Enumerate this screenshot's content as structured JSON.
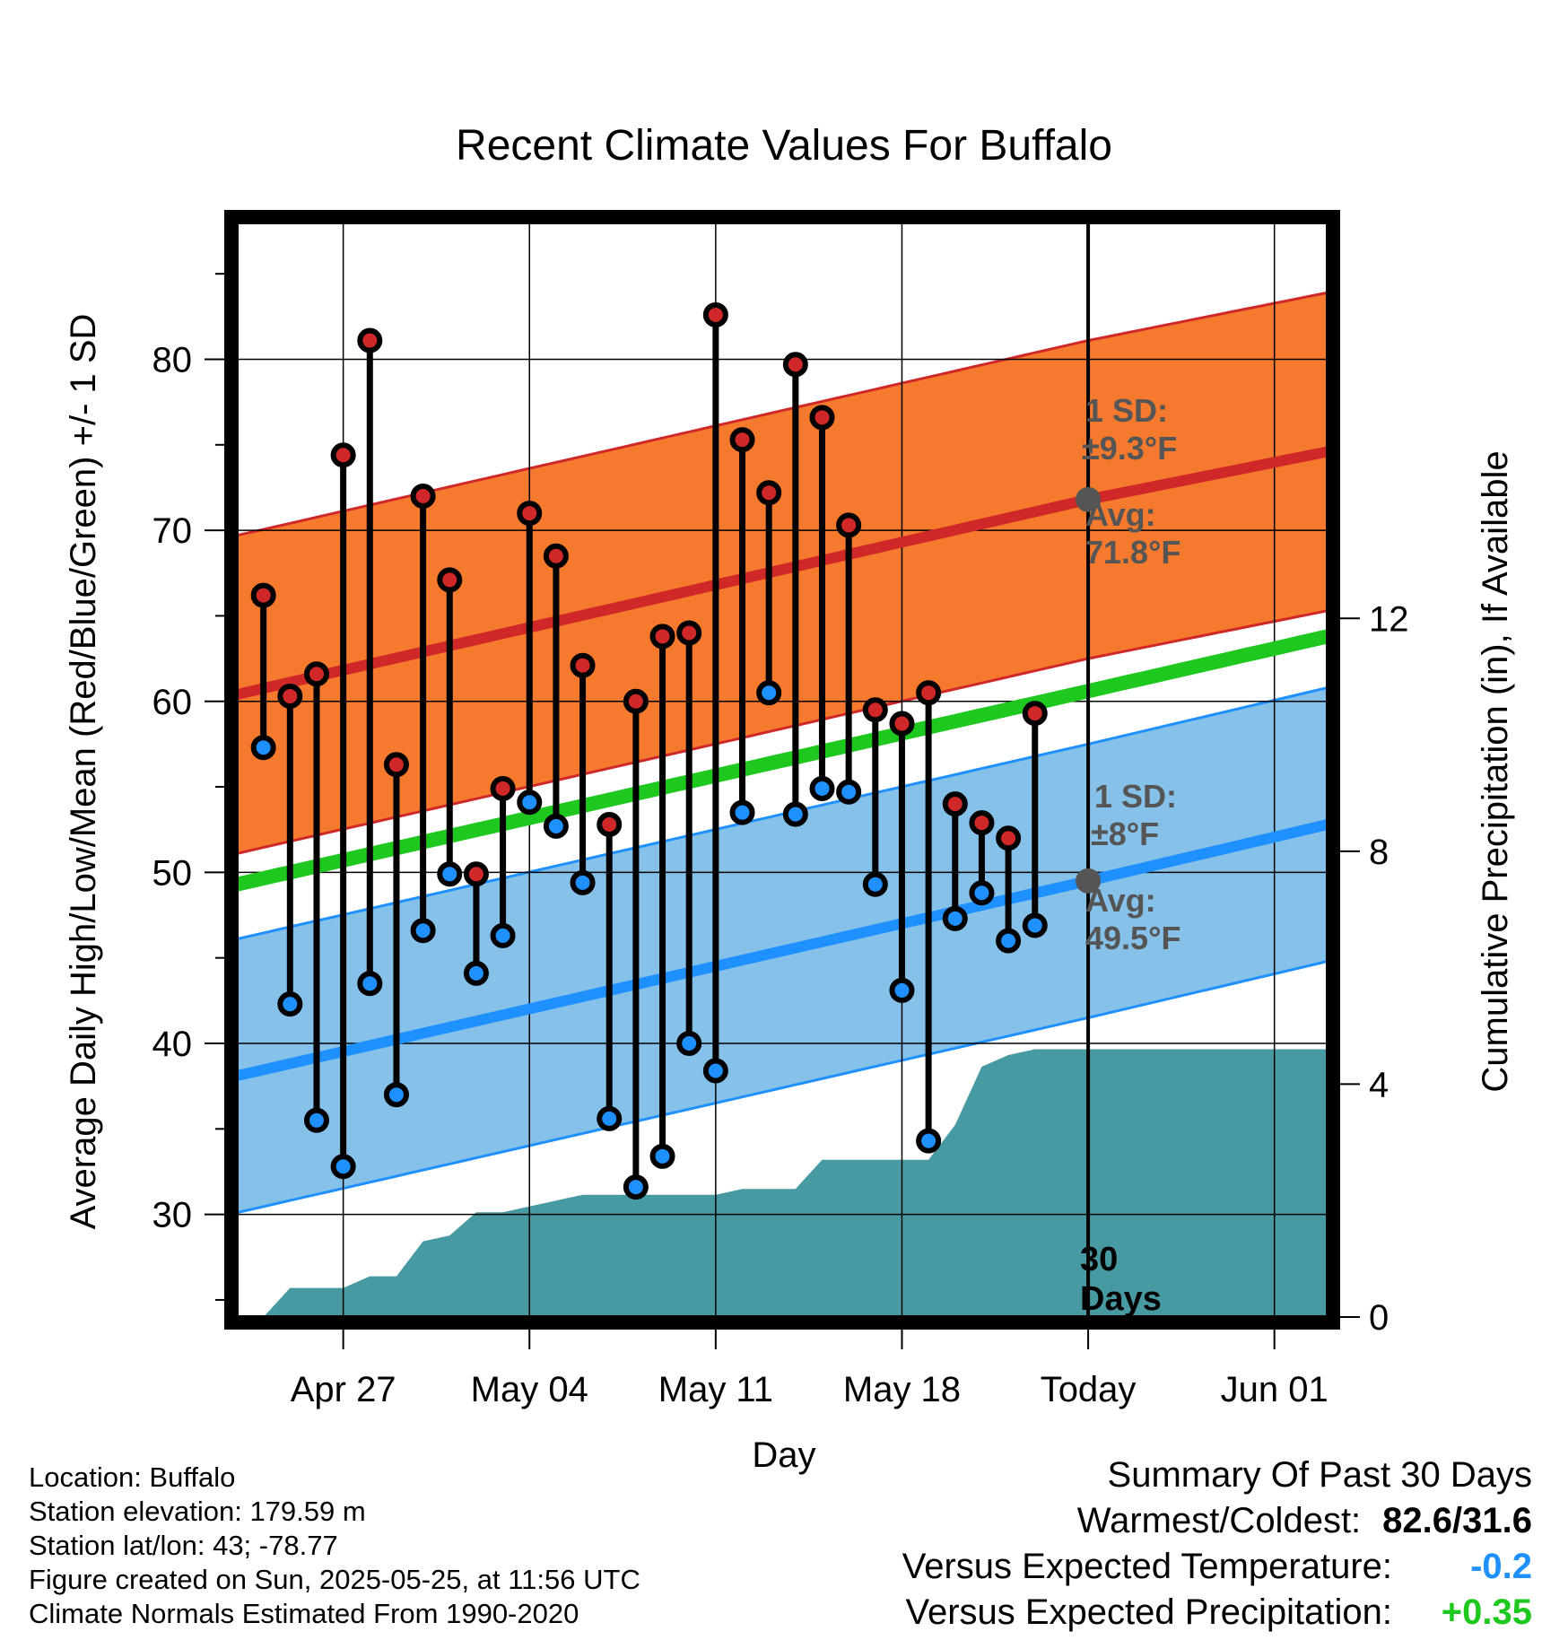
{
  "chart_data": {
    "type": "line",
    "title": "Recent Climate Values For Buffalo",
    "xlabel": "Day",
    "ylabel": "Average Daily High/Low/Mean (Red/Blue/Green) +/- 1 SD",
    "y2label": "Cumulative Precipitation (in), If Available",
    "x_ticks": [
      "Apr 27",
      "May 04",
      "May 11",
      "May 18",
      "Today",
      "Jun 01"
    ],
    "x_range": [
      "2025-04-23",
      "2025-06-03"
    ],
    "ylim": [
      24,
      88
    ],
    "yticks": [
      30,
      40,
      50,
      60,
      70,
      80
    ],
    "y2lim": [
      0,
      18.8
    ],
    "y2ticks": [
      0,
      4,
      8,
      12
    ],
    "today": "2025-05-25",
    "normals": {
      "dates": [
        "2025-04-23",
        "2025-05-25",
        "2025-06-03"
      ],
      "avg_high": [
        60.4,
        71.8,
        74.6
      ],
      "high_sd": 9.3,
      "avg_low": [
        38.1,
        49.5,
        52.8
      ],
      "low_sd": 8,
      "avg_mean": [
        49.3,
        60.6,
        63.8
      ]
    },
    "annotations": {
      "high_sd_label": "1 SD:",
      "high_sd_value": "±9.3°F",
      "high_avg_label": "Avg:",
      "high_avg_value": "71.8°F",
      "low_sd_label": "1 SD:",
      "low_sd_value": "±8°F",
      "low_avg_label": "Avg:",
      "low_avg_value": "49.5°F",
      "period_number": "30",
      "period_unit": "Days"
    },
    "series": [
      {
        "name": "Daily High",
        "dates": [
          "2025-04-24",
          "2025-04-25",
          "2025-04-26",
          "2025-04-27",
          "2025-04-28",
          "2025-04-29",
          "2025-04-30",
          "2025-05-01",
          "2025-05-02",
          "2025-05-03",
          "2025-05-04",
          "2025-05-05",
          "2025-05-06",
          "2025-05-07",
          "2025-05-08",
          "2025-05-09",
          "2025-05-10",
          "2025-05-11",
          "2025-05-12",
          "2025-05-13",
          "2025-05-14",
          "2025-05-15",
          "2025-05-16",
          "2025-05-17",
          "2025-05-18",
          "2025-05-19",
          "2025-05-20",
          "2025-05-21",
          "2025-05-22",
          "2025-05-23",
          "2025-05-24"
        ],
        "values": [
          66.2,
          60.3,
          61.6,
          74.4,
          81.1,
          56.3,
          72.0,
          67.1,
          49.9,
          54.9,
          71.0,
          68.5,
          62.1,
          52.8,
          60.0,
          63.8,
          64.0,
          82.6,
          75.3,
          72.2,
          79.7,
          76.6,
          70.3,
          59.5,
          58.7,
          60.5,
          54.0,
          52.9,
          52.0,
          59.3,
          null
        ]
      },
      {
        "name": "Daily Low",
        "dates": [
          "2025-04-24",
          "2025-04-25",
          "2025-04-26",
          "2025-04-27",
          "2025-04-28",
          "2025-04-29",
          "2025-04-30",
          "2025-05-01",
          "2025-05-02",
          "2025-05-03",
          "2025-05-04",
          "2025-05-05",
          "2025-05-06",
          "2025-05-07",
          "2025-05-08",
          "2025-05-09",
          "2025-05-10",
          "2025-05-11",
          "2025-05-12",
          "2025-05-13",
          "2025-05-14",
          "2025-05-15",
          "2025-05-16",
          "2025-05-17",
          "2025-05-18",
          "2025-05-19",
          "2025-05-20",
          "2025-05-21",
          "2025-05-22",
          "2025-05-23",
          "2025-05-24"
        ],
        "values": [
          57.3,
          42.3,
          35.5,
          32.8,
          43.5,
          37.0,
          46.6,
          49.9,
          44.1,
          46.3,
          54.1,
          52.7,
          49.4,
          35.6,
          31.6,
          33.4,
          40.0,
          38.4,
          53.5,
          60.5,
          53.4,
          54.9,
          54.7,
          49.3,
          43.1,
          34.3,
          47.3,
          48.8,
          46.0,
          46.9,
          null
        ]
      },
      {
        "name": "Cumulative Precipitation",
        "dates": [
          "2025-04-23",
          "2025-04-24",
          "2025-04-25",
          "2025-04-26",
          "2025-04-27",
          "2025-04-28",
          "2025-04-29",
          "2025-04-30",
          "2025-05-01",
          "2025-05-02",
          "2025-05-03",
          "2025-05-04",
          "2025-05-05",
          "2025-05-06",
          "2025-05-07",
          "2025-05-08",
          "2025-05-09",
          "2025-05-10",
          "2025-05-11",
          "2025-05-12",
          "2025-05-13",
          "2025-05-14",
          "2025-05-15",
          "2025-05-16",
          "2025-05-17",
          "2025-05-18",
          "2025-05-19",
          "2025-05-20",
          "2025-05-21",
          "2025-05-22",
          "2025-05-23",
          "2025-05-24",
          "2025-05-25"
        ],
        "values": [
          0.0,
          0.0,
          0.5,
          0.5,
          0.5,
          0.7,
          0.7,
          1.3,
          1.4,
          1.8,
          1.8,
          1.9,
          2.0,
          2.1,
          2.1,
          2.1,
          2.1,
          2.1,
          2.1,
          2.2,
          2.2,
          2.2,
          2.7,
          2.7,
          2.7,
          2.7,
          2.7,
          3.3,
          4.3,
          4.5,
          4.6,
          4.6,
          4.6
        ]
      }
    ]
  },
  "footer": {
    "location": "Location: Buffalo",
    "elevation": "Station elevation: 179.59 m",
    "latlon": "Station lat/lon: 43; -78.77",
    "created": "Figure created on Sun, 2025-05-25, at 11:56 UTC",
    "normals": "Climate Normals Estimated From 1990-2020"
  },
  "summary": {
    "heading": "Summary Of Past 30 Days",
    "warmest_label": "Warmest/Coldest:",
    "warmest_value": "82.6/31.6",
    "temp_label": "Versus Expected Temperature:",
    "temp_value": "-0.2",
    "precip_label": "Versus Expected Precipitation:",
    "precip_value": "+0.35"
  },
  "colors": {
    "high_band": "#f57a2e",
    "high_line": "#d02828",
    "low_band": "#85c1e9",
    "low_line": "#1e90ff",
    "mean_line": "#1ec81e",
    "precip": "#489aa2",
    "high_dot": "#d02828",
    "low_dot": "#1e90ff",
    "today_dot": "#555555"
  }
}
